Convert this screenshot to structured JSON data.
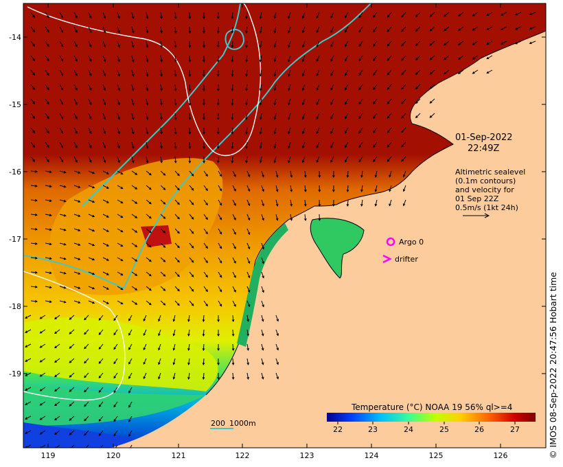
{
  "map": {
    "lon_ticks": [
      "119",
      "120",
      "121",
      "122",
      "123",
      "124",
      "125",
      "126"
    ],
    "lat_ticks": [
      "-14",
      "-15",
      "-16",
      "-17",
      "-18",
      "-19"
    ],
    "date_label": "01-Sep-2022",
    "time_label": "22:49Z",
    "altimetry_lines": [
      "Altimetric sealevel",
      "(0.1m contours)",
      "and velocity for",
      "01 Sep 22Z",
      "0.5m/s (1kt 24h)"
    ],
    "legend": {
      "argo_label": "Argo 0",
      "drifter_label": "drifter",
      "marker_color": "#ff00ff"
    },
    "depth_scale": {
      "shallow": "200",
      "deep": "1000m",
      "line_color": "#40c8c8"
    },
    "colorbar": {
      "title": "Temperature (°C) NOAA 19 56% ql>=4",
      "ticks": [
        "22",
        "23",
        "24",
        "25",
        "26",
        "27"
      ],
      "colors": [
        "#00008f",
        "#0040ff",
        "#00c0ff",
        "#40ff90",
        "#c0ff00",
        "#ffd000",
        "#ff6000",
        "#d00000",
        "#800000"
      ]
    },
    "credit": "©  IMOS 08-Sep-2022 20:47:56 Hobart time",
    "colors": {
      "land": "#fccc9c",
      "hot_sst": "#a30f00",
      "contour": "#ffffff",
      "isobath": "#40c8c8"
    }
  }
}
